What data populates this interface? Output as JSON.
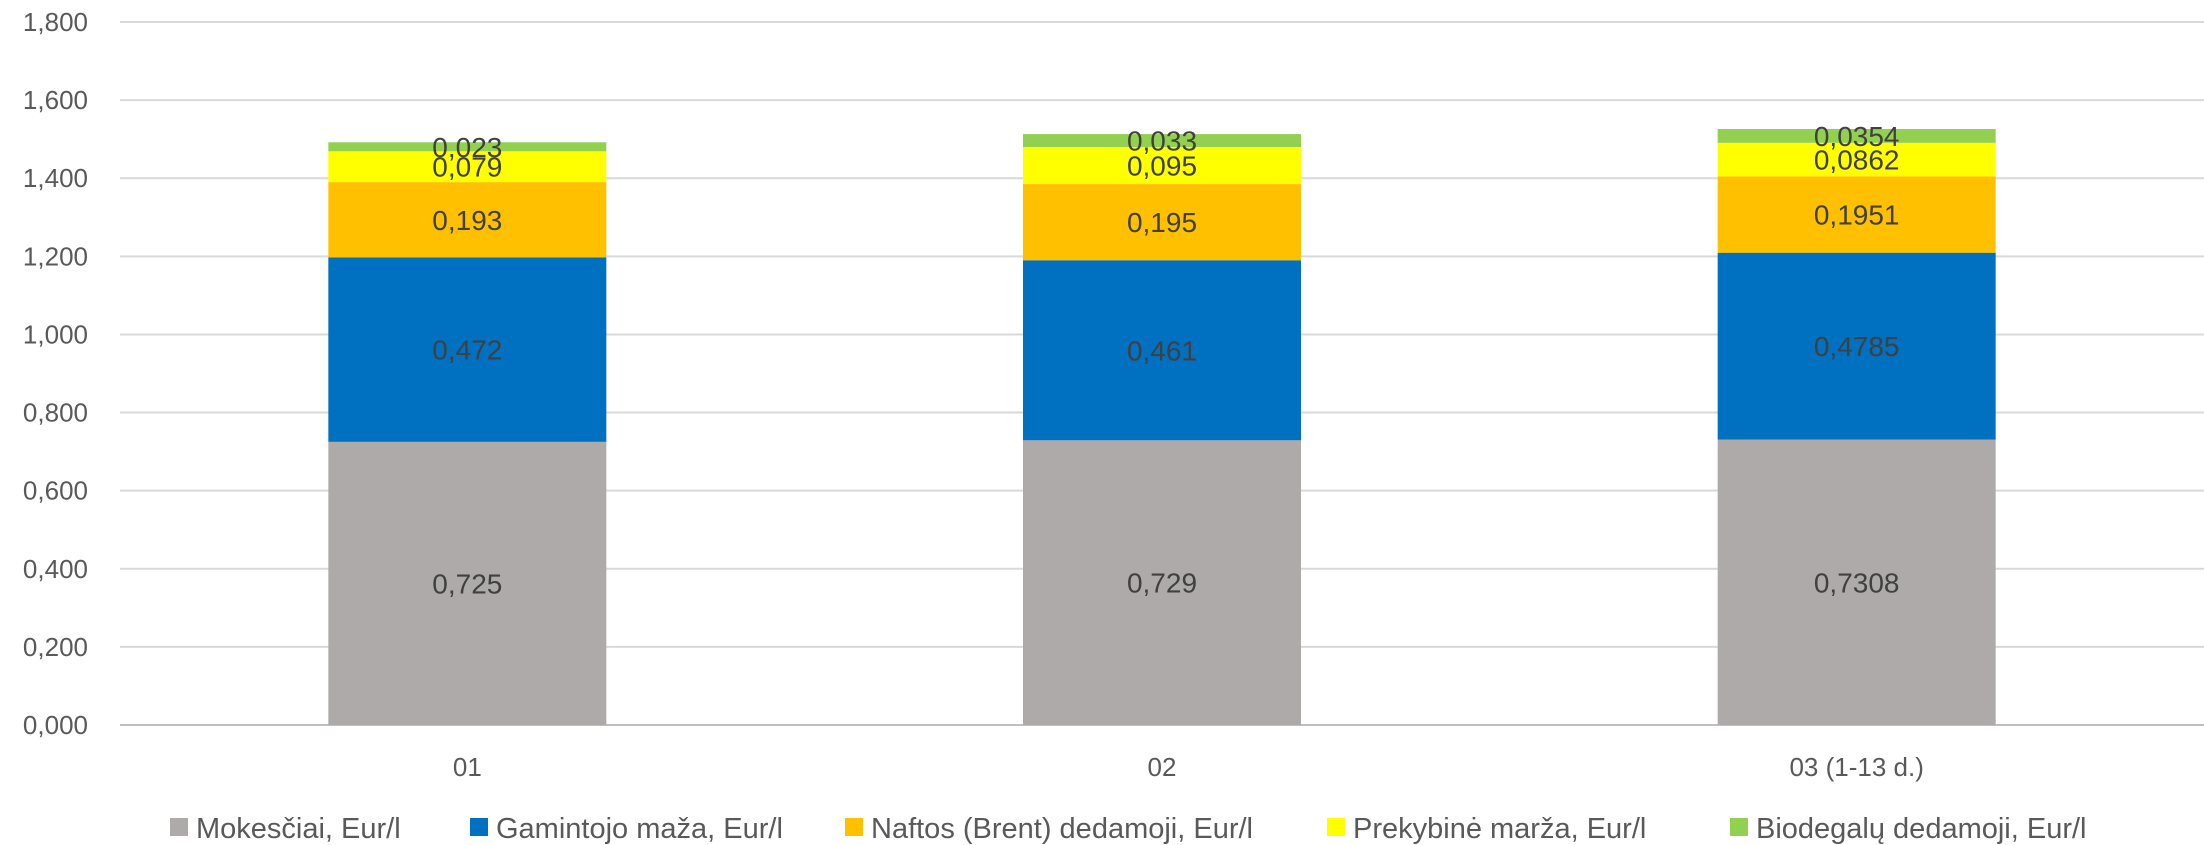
{
  "chart_data": {
    "type": "bar",
    "stacked": true,
    "categories": [
      "01",
      "02",
      "03 (1-13 d.)"
    ],
    "series": [
      {
        "name": "Mokesčiai, Eur/l",
        "color": "#aeaaaa",
        "values": [
          0.725,
          0.729,
          0.7308
        ],
        "labels": [
          "0,725",
          "0,729",
          "0,7308"
        ]
      },
      {
        "name": "Gamintojo maža, Eur/l",
        "color": "#0070c0",
        "values": [
          0.472,
          0.461,
          0.4785
        ],
        "labels": [
          "0,472",
          "0,461",
          "0,4785"
        ]
      },
      {
        "name": "Naftos (Brent) dedamoji, Eur/l",
        "color": "#ffc000",
        "values": [
          0.193,
          0.195,
          0.1951
        ],
        "labels": [
          "0,193",
          "0,195",
          "0,1951"
        ]
      },
      {
        "name": "Prekybinė marža, Eur/l",
        "color": "#ffff00",
        "values": [
          0.079,
          0.095,
          0.0862
        ],
        "labels": [
          "0,079",
          "0,095",
          "0,0862"
        ]
      },
      {
        "name": "Biodegalų dedamoji, Eur/l",
        "color": "#92d050",
        "values": [
          0.023,
          0.033,
          0.0354
        ],
        "labels": [
          "0,023",
          "0,033",
          "0,0354"
        ]
      }
    ],
    "ylim": [
      0,
      1.8
    ],
    "yticks": [
      "0,000",
      "0,200",
      "0,400",
      "0,600",
      "0,800",
      "1,000",
      "1,200",
      "1,400",
      "1,600",
      "1,800"
    ],
    "ytick_values": [
      0,
      0.2,
      0.4,
      0.6,
      0.8,
      1.0,
      1.2,
      1.4,
      1.6,
      1.8
    ],
    "grid": true,
    "legend_position": "bottom",
    "xlabel": "",
    "ylabel": "",
    "title": ""
  }
}
